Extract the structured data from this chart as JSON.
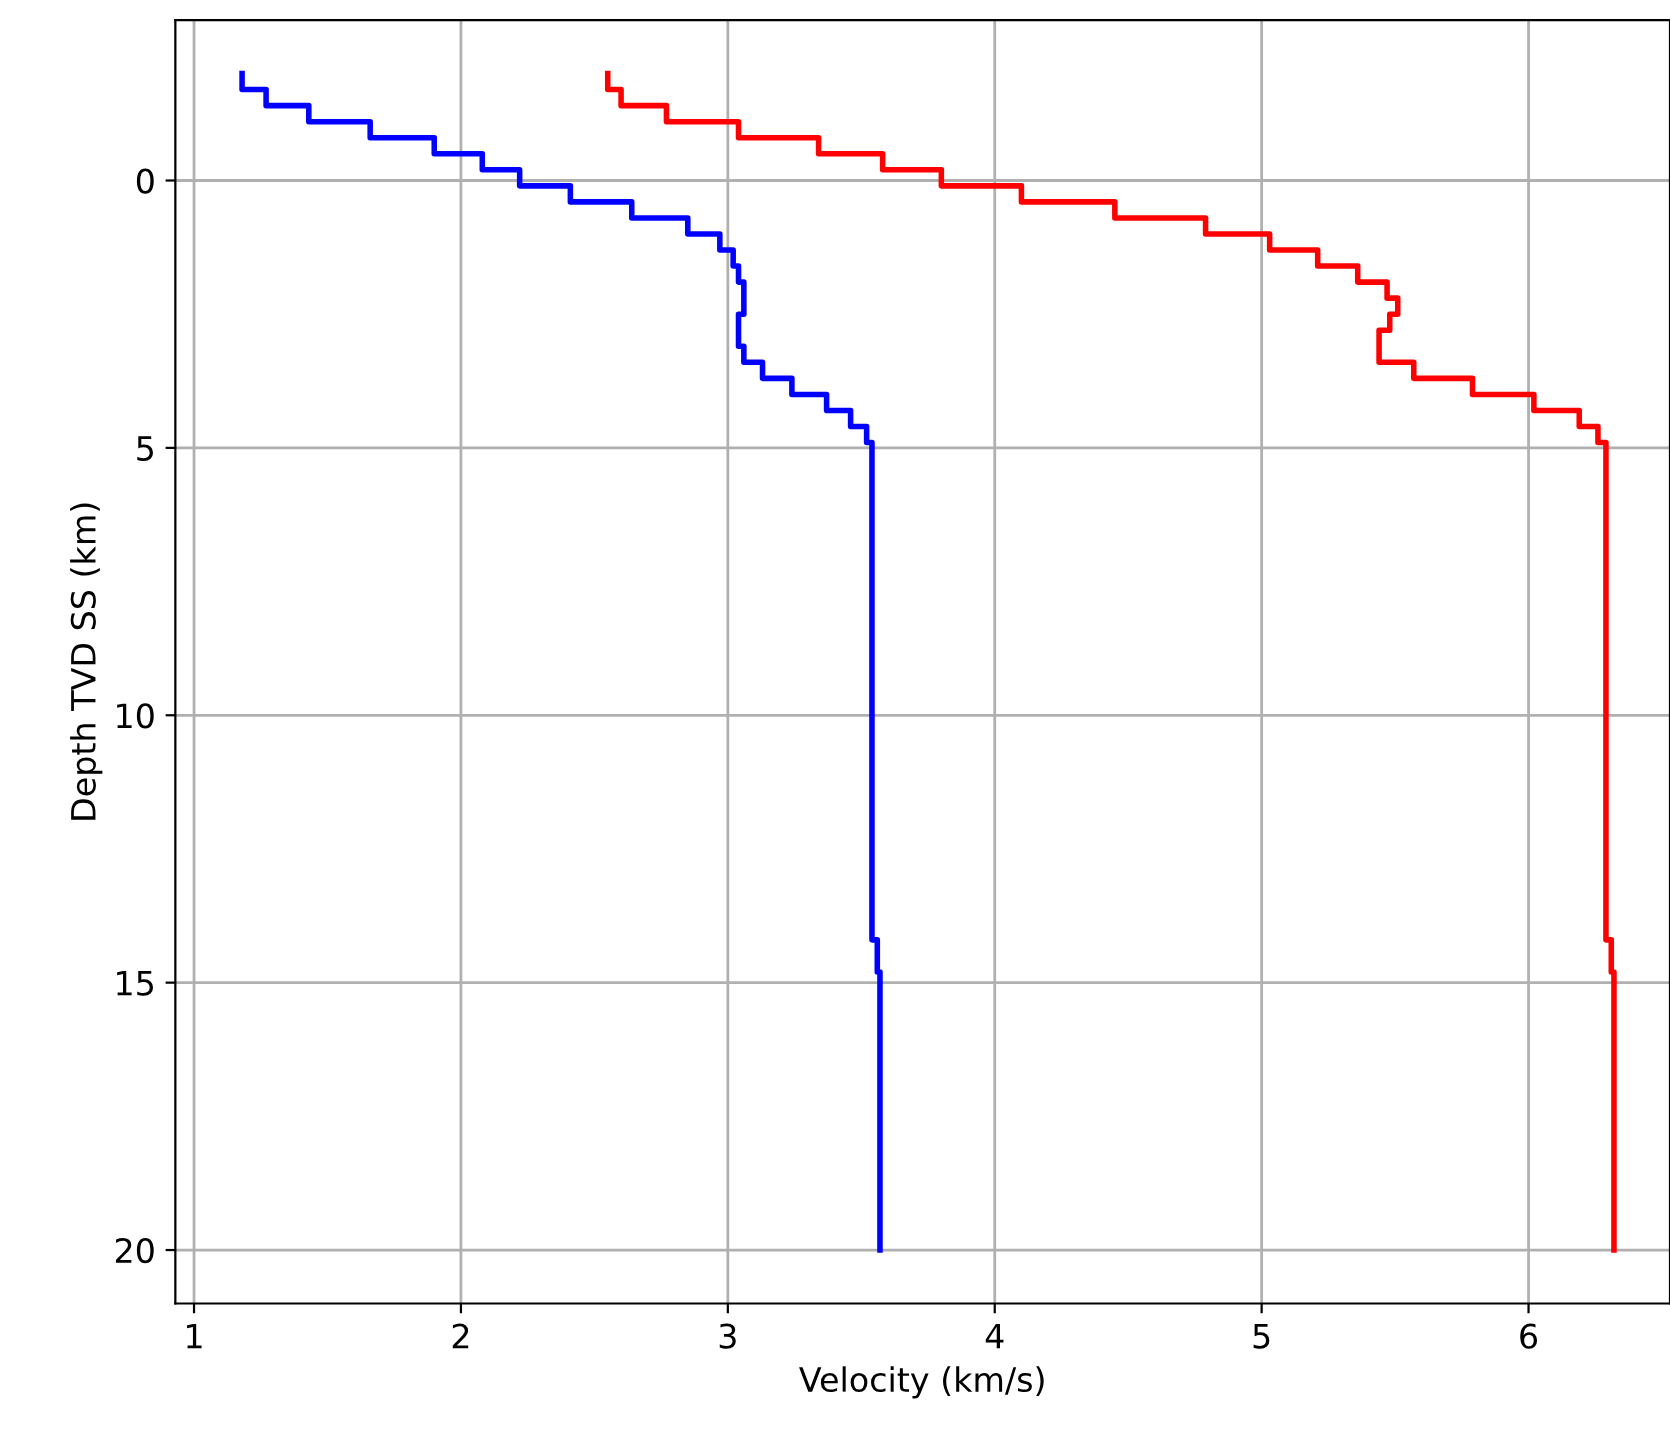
{
  "chart_data": {
    "type": "line",
    "xlabel": "Velocity (km/s)",
    "ylabel": "Depth TVD SS (km)",
    "xlim": [
      0.93,
      6.53
    ],
    "xticks": [
      1,
      2,
      3,
      4,
      5,
      6
    ],
    "ylim": [
      21,
      -3
    ],
    "yticks": [
      0,
      5,
      10,
      15,
      20
    ],
    "grid": true,
    "legend": false,
    "marker": "none",
    "line_style": "solid",
    "series": [
      {
        "color": "#0000ff",
        "x": [
          1.18,
          1.18,
          1.27,
          1.27,
          1.43,
          1.43,
          1.66,
          1.66,
          1.9,
          1.9,
          2.08,
          2.08,
          2.22,
          2.22,
          2.41,
          2.41,
          2.64,
          2.64,
          2.85,
          2.85,
          2.97,
          2.97,
          3.02,
          3.02,
          3.04,
          3.04,
          3.06,
          3.06,
          3.04,
          3.04,
          3.06,
          3.06,
          3.13,
          3.13,
          3.24,
          3.24,
          3.37,
          3.37,
          3.46,
          3.46,
          3.52,
          3.52,
          3.54,
          3.54,
          3.56,
          3.56,
          3.57,
          3.57
        ],
        "values": [
          -2.0,
          -1.7,
          -1.7,
          -1.4,
          -1.4,
          -1.1,
          -1.1,
          -0.8,
          -0.8,
          -0.5,
          -0.5,
          -0.2,
          -0.2,
          0.1,
          0.1,
          0.4,
          0.4,
          0.7,
          0.7,
          1.0,
          1.0,
          1.3,
          1.3,
          1.6,
          1.6,
          1.9,
          1.9,
          2.5,
          2.5,
          3.1,
          3.1,
          3.4,
          3.4,
          3.7,
          3.7,
          4.0,
          4.0,
          4.3,
          4.3,
          4.6,
          4.6,
          4.9,
          4.9,
          14.2,
          14.2,
          14.8,
          14.8,
          20
        ]
      },
      {
        "color": "#ff0000",
        "x": [
          2.55,
          2.55,
          2.6,
          2.6,
          2.77,
          2.77,
          3.04,
          3.04,
          3.34,
          3.34,
          3.58,
          3.58,
          3.8,
          3.8,
          4.1,
          4.1,
          4.45,
          4.45,
          4.79,
          4.79,
          5.03,
          5.03,
          5.21,
          5.21,
          5.36,
          5.36,
          5.47,
          5.47,
          5.51,
          5.51,
          5.48,
          5.48,
          5.44,
          5.44,
          5.57,
          5.57,
          5.79,
          5.79,
          6.02,
          6.02,
          6.19,
          6.19,
          6.26,
          6.26,
          6.29,
          6.29,
          6.31,
          6.31,
          6.32,
          6.32
        ],
        "values": [
          -2.0,
          -1.7,
          -1.7,
          -1.4,
          -1.4,
          -1.1,
          -1.1,
          -0.8,
          -0.8,
          -0.5,
          -0.5,
          -0.2,
          -0.2,
          0.1,
          0.1,
          0.4,
          0.4,
          0.7,
          0.7,
          1.0,
          1.0,
          1.3,
          1.3,
          1.6,
          1.6,
          1.9,
          1.9,
          2.2,
          2.2,
          2.5,
          2.5,
          2.8,
          2.8,
          3.4,
          3.4,
          3.7,
          3.7,
          4.0,
          4.0,
          4.3,
          4.3,
          4.6,
          4.6,
          4.9,
          4.9,
          14.2,
          14.2,
          14.8,
          14.8,
          20
        ]
      }
    ]
  }
}
